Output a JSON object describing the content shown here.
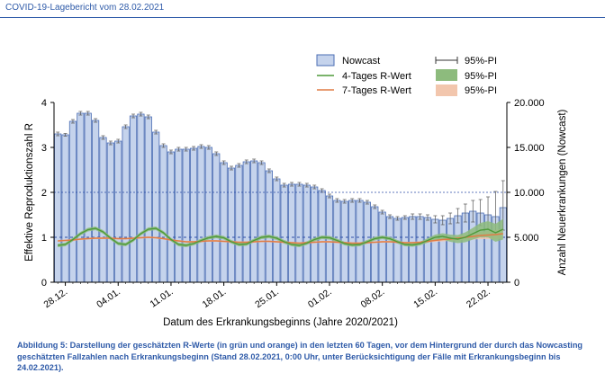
{
  "header": {
    "title": "COVID-19-Lagebericht vom 28.02.2021"
  },
  "caption": "Abbildung 5: Darstellung der geschätzten R-Werte (in grün und orange) in den letzten 60 Tagen, vor dem Hintergrund der durch das Nowcasting geschätzten Fallzahlen nach Erkrankungsbeginn (Stand 28.02.2021, 0:00 Uhr, unter Berücksichtigung der Fälle mit Erkrankungsbeginn bis 24.02.2021).",
  "colors": {
    "bar_fill": "#c5d3ec",
    "bar_stroke": "#4a6cb3",
    "r4_line": "#4e9a3a",
    "r4_pi": "#8dbb7d",
    "r7_line": "#e07b45",
    "r7_pi": "#f2c6ad",
    "ref_line": "#2e4fa8",
    "header": "#2e5aa8"
  },
  "chart_data": {
    "type": "bar",
    "xlabel": "Datum des Erkrankungsbeginns (Jahre 2020/2021)",
    "ylabel_left": "Effektive Reproduktionszahl R",
    "ylabel_right": "Anzahl Neuerkrankungen (Nowcast)",
    "ylim_left": [
      0,
      4
    ],
    "yticks_left": [
      "0",
      "1",
      "2",
      "3",
      "4"
    ],
    "ylim_right": [
      0,
      20000
    ],
    "yticks_right": [
      "0",
      "5.000",
      "10.000",
      "15.000",
      "20.000"
    ],
    "reference_lines": {
      "r_equals_1": 1,
      "cases_10000": 10000
    },
    "x_tick_labels": [
      "28.12.",
      "04.01.",
      "11.01.",
      "18.01.",
      "25.01.",
      "01.02.",
      "08.02.",
      "15.02.",
      "22.02."
    ],
    "legend": {
      "placement": "top",
      "entries": [
        "Nowcast",
        "95%-PI",
        "4-Tages R-Wert",
        "95%-PI",
        "7-Tages R-Wert",
        "95%-PI"
      ]
    },
    "nowcast": {
      "name": "Nowcast",
      "start_date": "27.12.",
      "values": [
        16500,
        16400,
        17900,
        18800,
        18800,
        18000,
        16100,
        15500,
        15700,
        17300,
        18500,
        18700,
        18400,
        16700,
        15200,
        14500,
        14800,
        14800,
        14900,
        15100,
        15000,
        14300,
        13300,
        12700,
        13000,
        13400,
        13500,
        13300,
        12400,
        11500,
        10800,
        10900,
        10900,
        10800,
        10600,
        10200,
        9600,
        9100,
        9000,
        9100,
        9100,
        8900,
        8400,
        7800,
        7300,
        7100,
        7200,
        7300,
        7300,
        7200,
        7000,
        6900,
        7100,
        7400,
        7700,
        7900,
        7700,
        7500,
        7300,
        8300
      ],
      "pi_low": [
        16300,
        16250,
        17700,
        18600,
        18600,
        17800,
        15900,
        15300,
        15500,
        17100,
        18300,
        18500,
        18200,
        16500,
        15000,
        14300,
        14600,
        14600,
        14700,
        14900,
        14800,
        14100,
        13100,
        12500,
        12800,
        13200,
        13300,
        13100,
        12200,
        11300,
        10600,
        10700,
        10700,
        10600,
        10400,
        10000,
        9400,
        8900,
        8800,
        8900,
        8900,
        8700,
        8200,
        7600,
        7100,
        6900,
        7000,
        7000,
        7000,
        6900,
        6600,
        6400,
        6500,
        6600,
        6700,
        6700,
        6300,
        5900,
        5400,
        5800
      ],
      "pi_high": [
        16700,
        16550,
        18100,
        19000,
        19000,
        18200,
        16300,
        15700,
        15900,
        17500,
        18700,
        18900,
        18600,
        16900,
        15400,
        14700,
        15000,
        15000,
        15100,
        15300,
        15200,
        14500,
        13500,
        12900,
        13200,
        13600,
        13700,
        13500,
        12600,
        11700,
        11000,
        11100,
        11100,
        11000,
        10800,
        10400,
        9800,
        9300,
        9200,
        9300,
        9300,
        9100,
        8600,
        8000,
        7500,
        7300,
        7400,
        7600,
        7600,
        7500,
        7400,
        7400,
        7700,
        8200,
        8700,
        9100,
        9200,
        9500,
        10100,
        11300
      ]
    },
    "r4": {
      "name": "4-Tages R-Wert",
      "values": [
        0.82,
        0.84,
        0.95,
        1.08,
        1.17,
        1.2,
        1.12,
        0.98,
        0.86,
        0.84,
        0.94,
        1.08,
        1.18,
        1.2,
        1.1,
        0.95,
        0.84,
        0.82,
        0.86,
        0.93,
        0.99,
        1.02,
        0.99,
        0.9,
        0.84,
        0.85,
        0.93,
        1.0,
        1.02,
        0.98,
        0.9,
        0.84,
        0.82,
        0.87,
        0.95,
        1.0,
        0.99,
        0.93,
        0.86,
        0.83,
        0.84,
        0.9,
        0.97,
        1.0,
        0.97,
        0.9,
        0.84,
        0.83,
        0.86,
        0.93,
        1.0,
        1.02,
        0.98,
        0.96,
        1.0,
        1.08,
        1.16,
        1.18,
        1.1,
        1.18
      ],
      "pi_low": [
        0.78,
        0.8,
        0.91,
        1.04,
        1.13,
        1.16,
        1.08,
        0.94,
        0.82,
        0.8,
        0.9,
        1.04,
        1.14,
        1.16,
        1.06,
        0.91,
        0.8,
        0.78,
        0.82,
        0.89,
        0.95,
        0.98,
        0.95,
        0.86,
        0.8,
        0.81,
        0.89,
        0.96,
        0.98,
        0.94,
        0.86,
        0.8,
        0.78,
        0.83,
        0.91,
        0.96,
        0.95,
        0.89,
        0.82,
        0.79,
        0.8,
        0.86,
        0.93,
        0.96,
        0.93,
        0.86,
        0.8,
        0.79,
        0.82,
        0.88,
        0.94,
        0.95,
        0.9,
        0.87,
        0.89,
        0.95,
        1.0,
        1.0,
        0.9,
        0.95
      ],
      "pi_high": [
        0.86,
        0.88,
        0.99,
        1.12,
        1.21,
        1.24,
        1.16,
        1.02,
        0.9,
        0.88,
        0.98,
        1.12,
        1.22,
        1.24,
        1.14,
        0.99,
        0.88,
        0.86,
        0.9,
        0.97,
        1.03,
        1.06,
        1.03,
        0.94,
        0.88,
        0.89,
        0.97,
        1.04,
        1.06,
        1.02,
        0.94,
        0.88,
        0.86,
        0.91,
        0.99,
        1.04,
        1.03,
        0.97,
        0.9,
        0.87,
        0.88,
        0.94,
        1.01,
        1.04,
        1.01,
        0.94,
        0.88,
        0.87,
        0.9,
        0.98,
        1.06,
        1.09,
        1.06,
        1.05,
        1.11,
        1.21,
        1.32,
        1.36,
        1.3,
        1.41
      ]
    },
    "r7": {
      "name": "7-Tages R-Wert",
      "values": [
        0.92,
        0.93,
        0.94,
        0.96,
        0.97,
        0.98,
        0.98,
        0.98,
        0.97,
        0.97,
        0.98,
        0.99,
        1.0,
        0.99,
        0.97,
        0.94,
        0.92,
        0.9,
        0.9,
        0.91,
        0.92,
        0.92,
        0.91,
        0.9,
        0.89,
        0.89,
        0.9,
        0.91,
        0.91,
        0.9,
        0.89,
        0.88,
        0.87,
        0.88,
        0.89,
        0.9,
        0.9,
        0.89,
        0.88,
        0.87,
        0.87,
        0.88,
        0.89,
        0.9,
        0.9,
        0.89,
        0.88,
        0.88,
        0.89,
        0.91,
        0.93,
        0.95,
        0.96,
        0.98,
        1.0,
        1.02,
        1.04,
        1.05,
        1.06,
        1.08
      ],
      "pi_low": [
        0.9,
        0.91,
        0.92,
        0.94,
        0.95,
        0.96,
        0.96,
        0.96,
        0.95,
        0.95,
        0.96,
        0.97,
        0.98,
        0.97,
        0.95,
        0.92,
        0.9,
        0.88,
        0.88,
        0.89,
        0.9,
        0.9,
        0.89,
        0.88,
        0.87,
        0.87,
        0.88,
        0.89,
        0.89,
        0.88,
        0.87,
        0.86,
        0.85,
        0.86,
        0.87,
        0.88,
        0.88,
        0.87,
        0.86,
        0.85,
        0.85,
        0.86,
        0.87,
        0.88,
        0.88,
        0.87,
        0.86,
        0.86,
        0.87,
        0.88,
        0.9,
        0.91,
        0.92,
        0.93,
        0.94,
        0.95,
        0.96,
        0.96,
        0.96,
        0.97
      ],
      "pi_high": [
        0.94,
        0.95,
        0.96,
        0.98,
        0.99,
        1.0,
        1.0,
        1.0,
        0.99,
        0.99,
        1.0,
        1.01,
        1.02,
        1.01,
        0.99,
        0.96,
        0.94,
        0.92,
        0.92,
        0.93,
        0.94,
        0.94,
        0.93,
        0.92,
        0.91,
        0.91,
        0.92,
        0.93,
        0.93,
        0.92,
        0.91,
        0.9,
        0.89,
        0.9,
        0.91,
        0.92,
        0.92,
        0.91,
        0.9,
        0.89,
        0.89,
        0.9,
        0.91,
        0.92,
        0.92,
        0.91,
        0.9,
        0.9,
        0.91,
        0.94,
        0.96,
        0.99,
        1.0,
        1.03,
        1.06,
        1.09,
        1.12,
        1.14,
        1.16,
        1.19
      ]
    }
  }
}
